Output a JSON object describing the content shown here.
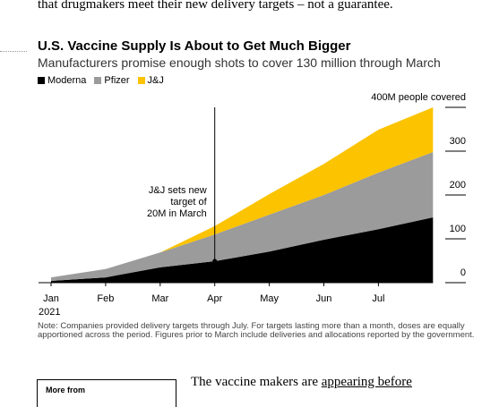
{
  "article_top": "that drugmakers meet their new delivery targets – not a guarantee.",
  "chart_data": {
    "type": "stacked_area",
    "title": "U.S. Vaccine Supply Is About to Get Much Bigger",
    "subtitle": "Manufacturers promise enough shots to cover 130 million through March",
    "categories": [
      "Jan",
      "Feb",
      "Mar",
      "Apr",
      "May",
      "Jun",
      "Jul",
      null
    ],
    "year_label": "2021",
    "series": [
      {
        "name": "Moderna",
        "color": "#000000",
        "values": [
          4,
          12,
          35,
          49,
          71,
          98,
          122,
          149
        ]
      },
      {
        "name": "Pfizer",
        "color": "#9b9b9b",
        "values": [
          8,
          19,
          34,
          61,
          84,
          102,
          129,
          149
        ]
      },
      {
        "name": "J&J",
        "color": "#fbc300",
        "values": [
          0,
          0,
          0,
          19,
          47,
          71,
          98,
          102
        ]
      }
    ],
    "ylim": [
      0,
      400
    ],
    "yticks": [
      0,
      100,
      200,
      300,
      {
        "value": 400,
        "label": "400M people covered"
      }
    ],
    "annotation": {
      "lines": [
        "J&J sets new",
        "target of",
        "20M in March"
      ],
      "category": 3
    },
    "note": "Note: Companies provided delivery targets through July. For targets lasting more than a month, doses are equally apportioned across the period. Figures prior to March include deliveries and allocations reported by the government."
  },
  "sidebar": {
    "heading": "More from"
  },
  "article_next": {
    "before": "The vaccine makers are ",
    "link": "appearing before"
  }
}
